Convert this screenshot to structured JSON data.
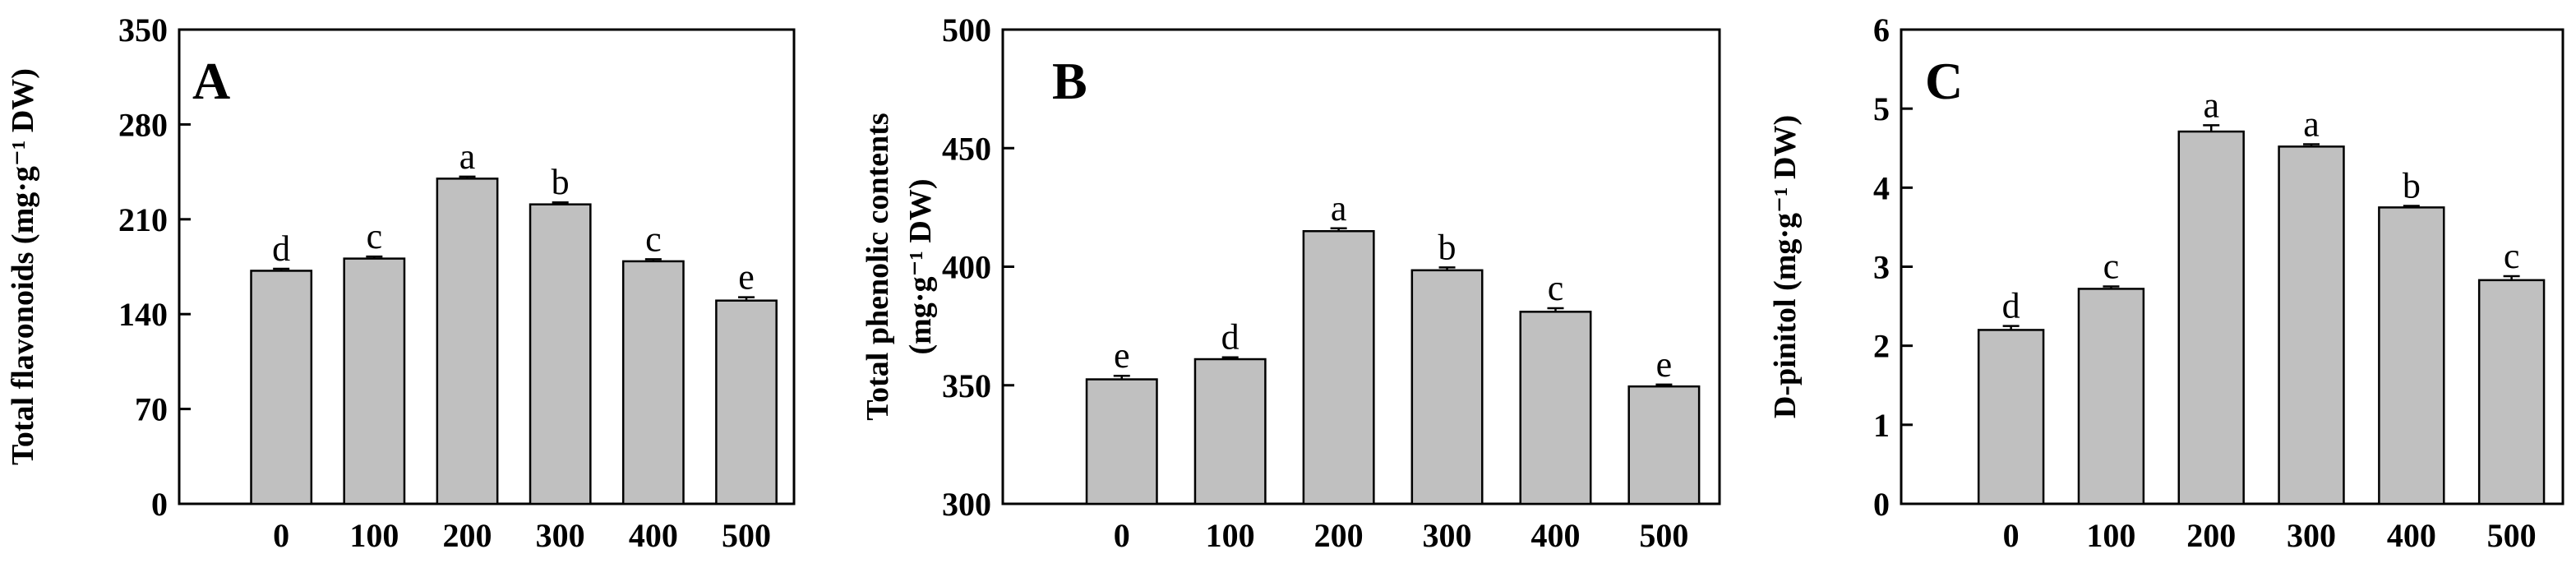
{
  "figure": {
    "bar_color": "#c0c0c0",
    "edge_color": "#000000"
  },
  "chart_data": [
    {
      "type": "bar",
      "panel_label": "A",
      "title": "",
      "xlabel": "",
      "ylabel_lines": [
        "Total flavonoids (mg·g⁻¹ DW)"
      ],
      "categories": [
        "0",
        "100",
        "200",
        "300",
        "400",
        "500"
      ],
      "values": [
        172,
        181,
        240,
        221,
        179,
        150
      ],
      "errors": [
        1.5,
        1.5,
        1.5,
        1.5,
        1.5,
        2.5
      ],
      "significance": [
        "d",
        "c",
        "a",
        "b",
        "c",
        "e"
      ],
      "ylim": [
        0,
        350
      ],
      "yticks": [
        "0",
        "70",
        "140",
        "210",
        "280",
        "350"
      ],
      "grid": false
    },
    {
      "type": "bar",
      "panel_label": "B",
      "title": "",
      "xlabel": "",
      "ylabel_lines": [
        "Total phenolic contents",
        "(mg·g⁻¹ DW)"
      ],
      "categories": [
        "0",
        "100",
        "200",
        "300",
        "400",
        "500"
      ],
      "values": [
        352.5,
        361,
        415,
        398.5,
        381,
        349.5
      ],
      "errors": [
        1.5,
        0.8,
        1.2,
        1.2,
        1.5,
        0.8
      ],
      "significance": [
        "e",
        "d",
        "a",
        "b",
        "c",
        "e"
      ],
      "ylim": [
        300,
        500
      ],
      "yticks": [
        "300",
        "350",
        "400",
        "450",
        "500"
      ],
      "grid": false
    },
    {
      "type": "bar",
      "panel_label": "C",
      "title": "",
      "xlabel": "",
      "ylabel_lines": [
        "D-pinitol (mg·g⁻¹ DW)"
      ],
      "categories": [
        "0",
        "100",
        "200",
        "300",
        "400",
        "500"
      ],
      "values": [
        2.2,
        2.72,
        4.71,
        4.52,
        3.75,
        2.83
      ],
      "errors": [
        0.05,
        0.03,
        0.08,
        0.03,
        0.02,
        0.05
      ],
      "significance": [
        "d",
        "c",
        "a",
        "a",
        "b",
        "c"
      ],
      "ylim": [
        0,
        6
      ],
      "yticks": [
        "0",
        "1",
        "2",
        "3",
        "4",
        "5",
        "6"
      ],
      "grid": false
    }
  ]
}
